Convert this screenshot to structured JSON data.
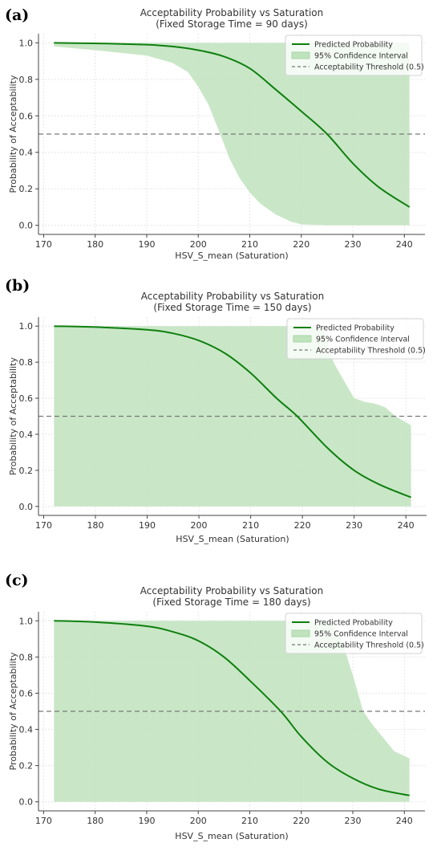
{
  "panels": [
    {
      "label": "(a)"
    },
    {
      "label": "(b)"
    },
    {
      "label": "(c)"
    }
  ],
  "colors": {
    "line": "#0f7f0f",
    "ci_fill": "#bfe3bd",
    "threshold": "#777777",
    "grid": "#e6e6e6",
    "axis": "#444444"
  },
  "chart_data": [
    {
      "type": "line",
      "title": "Acceptability Probability vs Saturation",
      "subtitle": "(Fixed Storage Time = 90 days)",
      "xlabel": "HSV_S_mean (Saturation)",
      "ylabel": "Probability of Acceptability",
      "xlim": [
        169,
        244
      ],
      "ylim": [
        -0.05,
        1.05
      ],
      "xticks": [
        170,
        180,
        190,
        200,
        210,
        220,
        230,
        240
      ],
      "yticks": [
        0.0,
        0.2,
        0.4,
        0.6,
        0.8,
        1.0
      ],
      "grid": true,
      "legend_position": "top-right",
      "series": [
        {
          "name": "Predicted Probability",
          "kind": "line",
          "x": [
            172,
            180,
            190,
            195,
            200,
            205,
            210,
            215,
            220,
            225,
            230,
            235,
            241
          ],
          "y": [
            1.0,
            0.997,
            0.99,
            0.98,
            0.96,
            0.925,
            0.86,
            0.745,
            0.625,
            0.5,
            0.34,
            0.21,
            0.1
          ]
        },
        {
          "name": "95% Confidence Interval",
          "kind": "band",
          "x": [
            172,
            180,
            190,
            195,
            198,
            200,
            202,
            204,
            206,
            208,
            210,
            212,
            215,
            218,
            220,
            225,
            230,
            241
          ],
          "lower": [
            0.98,
            0.96,
            0.93,
            0.89,
            0.84,
            0.76,
            0.66,
            0.52,
            0.37,
            0.26,
            0.18,
            0.12,
            0.06,
            0.02,
            0.005,
            0.0,
            0.0,
            0.0
          ],
          "upper": [
            1.0,
            1.0,
            1.0,
            1.0,
            1.0,
            1.0,
            1.0,
            1.0,
            1.0,
            1.0,
            1.0,
            1.0,
            1.0,
            1.0,
            1.0,
            1.0,
            1.0,
            1.0
          ]
        },
        {
          "name": "Acceptability Threshold (0.5)",
          "kind": "hline",
          "y": 0.5
        }
      ]
    },
    {
      "type": "line",
      "title": "Acceptability Probability vs Saturation",
      "subtitle": "(Fixed Storage Time = 150 days)",
      "xlabel": "HSV_S_mean (Saturation)",
      "ylabel": "Probability of Acceptability",
      "xlim": [
        169,
        244
      ],
      "ylim": [
        -0.05,
        1.05
      ],
      "xticks": [
        170,
        180,
        190,
        200,
        210,
        220,
        230,
        240
      ],
      "yticks": [
        0.0,
        0.2,
        0.4,
        0.6,
        0.8,
        1.0
      ],
      "grid": true,
      "legend_position": "top-right",
      "series": [
        {
          "name": "Predicted Probability",
          "kind": "line",
          "x": [
            172,
            180,
            190,
            195,
            200,
            205,
            210,
            215,
            219,
            225,
            230,
            235,
            241
          ],
          "y": [
            1.0,
            0.995,
            0.98,
            0.96,
            0.92,
            0.85,
            0.74,
            0.6,
            0.5,
            0.32,
            0.2,
            0.12,
            0.05
          ]
        },
        {
          "name": "95% Confidence Interval",
          "kind": "band",
          "x": [
            172,
            180,
            190,
            200,
            210,
            220,
            224,
            226,
            228,
            230,
            232,
            234,
            236,
            238,
            241
          ],
          "lower": [
            0.0,
            0.0,
            0.0,
            0.0,
            0.0,
            0.0,
            0.0,
            0.0,
            0.0,
            0.0,
            0.0,
            0.0,
            0.0,
            0.0,
            0.0
          ],
          "upper": [
            1.0,
            1.0,
            1.0,
            1.0,
            1.0,
            1.0,
            0.99,
            0.8,
            0.7,
            0.6,
            0.58,
            0.57,
            0.55,
            0.5,
            0.45
          ]
        },
        {
          "name": "Acceptability Threshold (0.5)",
          "kind": "hline",
          "y": 0.5
        }
      ]
    },
    {
      "type": "line",
      "title": "Acceptability Probability vs Saturation",
      "subtitle": "(Fixed Storage Time = 180 days)",
      "xlabel": "HSV_S_mean (Saturation)",
      "ylabel": "Probability of Acceptability",
      "xlim": [
        169,
        244
      ],
      "ylim": [
        -0.05,
        1.05
      ],
      "xticks": [
        170,
        180,
        190,
        200,
        210,
        220,
        230,
        240
      ],
      "yticks": [
        0.0,
        0.2,
        0.4,
        0.6,
        0.8,
        1.0
      ],
      "grid": true,
      "legend_position": "top-right",
      "series": [
        {
          "name": "Predicted Probability",
          "kind": "line",
          "x": [
            172,
            180,
            190,
            195,
            200,
            205,
            210,
            216,
            220,
            225,
            230,
            235,
            241
          ],
          "y": [
            1.0,
            0.993,
            0.97,
            0.94,
            0.89,
            0.8,
            0.67,
            0.5,
            0.36,
            0.22,
            0.13,
            0.07,
            0.035
          ]
        },
        {
          "name": "95% Confidence Interval",
          "kind": "band",
          "x": [
            172,
            180,
            190,
            200,
            210,
            220,
            226,
            228,
            230,
            231,
            232,
            234,
            236,
            238,
            241
          ],
          "lower": [
            0.0,
            0.0,
            0.0,
            0.0,
            0.0,
            0.0,
            0.0,
            0.0,
            0.0,
            0.0,
            0.0,
            0.0,
            0.0,
            0.0,
            0.0
          ],
          "upper": [
            1.0,
            1.0,
            1.0,
            1.0,
            1.0,
            1.0,
            0.99,
            0.88,
            0.7,
            0.6,
            0.5,
            0.42,
            0.35,
            0.28,
            0.24
          ]
        },
        {
          "name": "Acceptability Threshold (0.5)",
          "kind": "hline",
          "y": 0.5
        }
      ]
    }
  ]
}
